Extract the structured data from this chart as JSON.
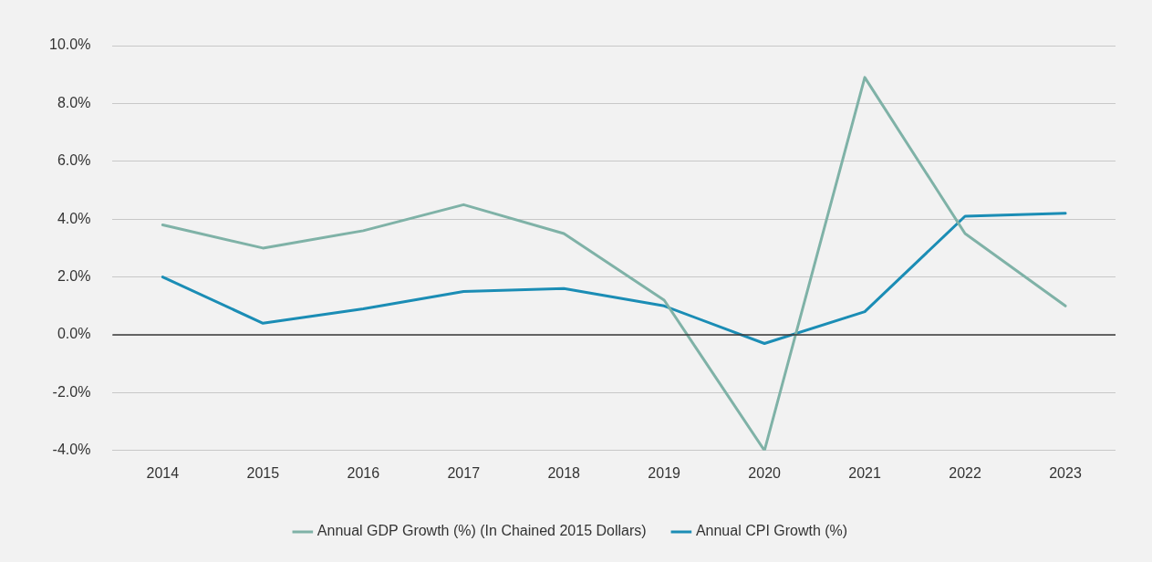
{
  "chart_data": {
    "type": "line",
    "categories": [
      "2014",
      "2015",
      "2016",
      "2017",
      "2018",
      "2019",
      "2020",
      "2021",
      "2022",
      "2023"
    ],
    "series": [
      {
        "name": "Annual GDP Growth (%) (In Chained 2015 Dollars)",
        "color": "#7fb2a7",
        "values": [
          3.8,
          3.0,
          3.6,
          4.5,
          3.5,
          1.2,
          -4.0,
          8.9,
          3.5,
          1.0
        ]
      },
      {
        "name": "Annual CPI Growth (%)",
        "color": "#1b8db5",
        "values": [
          2.0,
          0.4,
          0.9,
          1.5,
          1.6,
          1.0,
          -0.3,
          0.8,
          4.1,
          4.2
        ]
      }
    ],
    "ylim": [
      -4,
      10
    ],
    "yticks": [
      {
        "value": -4,
        "label": "-4.0%"
      },
      {
        "value": -2,
        "label": "-2.0%"
      },
      {
        "value": 0,
        "label": "0.0%"
      },
      {
        "value": 2,
        "label": "2.0%"
      },
      {
        "value": 4,
        "label": "4.0%"
      },
      {
        "value": 6,
        "label": "6.0%"
      },
      {
        "value": 8,
        "label": "8.0%"
      },
      {
        "value": 10,
        "label": "10.0%"
      }
    ],
    "grid": "y",
    "legend": "bottom",
    "marker": "none",
    "line_style": "solid",
    "ref_lines": [
      {
        "axis": "y",
        "value": 0,
        "color": "#3a3a3a"
      }
    ]
  }
}
